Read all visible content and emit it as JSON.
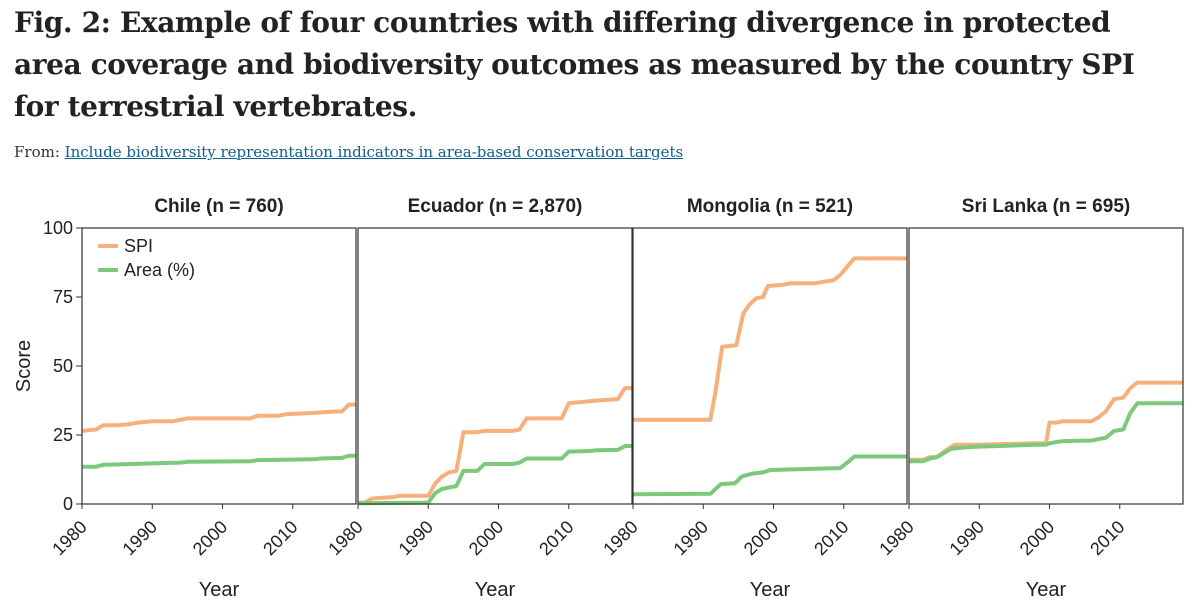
{
  "figure": {
    "title": "Fig. 2: Example of four countries with differing divergence in protected area coverage and biodiversity outcomes as measured by the country SPI for terrestrial vertebrates.",
    "from_label": "From:",
    "from_link": "Include biodiversity representation indicators in area-based conservation targets"
  },
  "colors": {
    "spi": "#f5b07c",
    "area": "#7dc97b",
    "frame": "#333333"
  },
  "chart_data": {
    "type": "line",
    "ylabel": "Score",
    "xlabel": "Year",
    "ylim": [
      0,
      100
    ],
    "xlim": [
      1980,
      2019
    ],
    "yticks": [
      0,
      25,
      50,
      75,
      100
    ],
    "xticks": [
      1980,
      1990,
      2000,
      2010
    ],
    "legend": {
      "position": "top-left",
      "entries": [
        "SPI",
        "Area (%)"
      ]
    },
    "panels": [
      {
        "title": "Chile (n = 760)",
        "series": [
          {
            "name": "SPI",
            "points": [
              [
                1980,
                26.5
              ],
              [
                1982,
                27
              ],
              [
                1983,
                28.5
              ],
              [
                1985,
                28.5
              ],
              [
                1987,
                29
              ],
              [
                1988,
                29.5
              ],
              [
                1990,
                30
              ],
              [
                1993,
                30
              ],
              [
                1995,
                31
              ],
              [
                2000,
                31
              ],
              [
                2004,
                31
              ],
              [
                2005,
                32
              ],
              [
                2008,
                32
              ],
              [
                2009,
                32.5
              ],
              [
                2013,
                33
              ],
              [
                2016,
                33.5
              ],
              [
                2017,
                33.5
              ],
              [
                2018,
                36
              ],
              [
                2019,
                36
              ]
            ]
          },
          {
            "name": "Area (%)",
            "points": [
              [
                1980,
                13.5
              ],
              [
                1982,
                13.5
              ],
              [
                1983,
                14.2
              ],
              [
                1987,
                14.5
              ],
              [
                1990,
                14.7
              ],
              [
                1994,
                15
              ],
              [
                1995,
                15.3
              ],
              [
                2004,
                15.5
              ],
              [
                2005,
                15.9
              ],
              [
                2013,
                16.2
              ],
              [
                2014,
                16.5
              ],
              [
                2017,
                16.7
              ],
              [
                2018,
                17.5
              ],
              [
                2019,
                17.5
              ]
            ]
          }
        ]
      },
      {
        "title": "Ecuador (n = 2,870)",
        "series": [
          {
            "name": "SPI",
            "points": [
              [
                1980,
                0.5
              ],
              [
                1981,
                0.5
              ],
              [
                1982,
                2
              ],
              [
                1985,
                2.5
              ],
              [
                1986,
                3
              ],
              [
                1990,
                3
              ],
              [
                1991,
                7.5
              ],
              [
                1992,
                10
              ],
              [
                1993,
                11.5
              ],
              [
                1994,
                12
              ],
              [
                1995,
                26
              ],
              [
                1997,
                26
              ],
              [
                1998,
                26.5
              ],
              [
                2002,
                26.5
              ],
              [
                2003,
                27
              ],
              [
                2004,
                31
              ],
              [
                2009,
                31
              ],
              [
                2010,
                36.5
              ],
              [
                2012,
                37
              ],
              [
                2014,
                37.5
              ],
              [
                2017,
                38
              ],
              [
                2018,
                42
              ],
              [
                2019,
                42
              ]
            ]
          },
          {
            "name": "Area (%)",
            "points": [
              [
                1980,
                0.3
              ],
              [
                1990,
                0.5
              ],
              [
                1991,
                4
              ],
              [
                1992,
                5.5
              ],
              [
                1993,
                6
              ],
              [
                1994,
                6.5
              ],
              [
                1995,
                12
              ],
              [
                1997,
                12
              ],
              [
                1998,
                14.5
              ],
              [
                2002,
                14.5
              ],
              [
                2003,
                15
              ],
              [
                2004,
                16.5
              ],
              [
                2009,
                16.5
              ],
              [
                2010,
                19
              ],
              [
                2013,
                19.2
              ],
              [
                2014,
                19.5
              ],
              [
                2017,
                19.6
              ],
              [
                2018,
                21
              ],
              [
                2019,
                21
              ]
            ]
          }
        ]
      },
      {
        "title": "Mongolia (n = 521)",
        "series": [
          {
            "name": "SPI",
            "points": [
              [
                1980,
                30.5
              ],
              [
                1991,
                30.5
              ],
              [
                1991.7,
                40
              ],
              [
                1992.7,
                57
              ],
              [
                1994.7,
                57.5
              ],
              [
                1995.7,
                69
              ],
              [
                1996.5,
                72
              ],
              [
                1997.5,
                74.5
              ],
              [
                1998.5,
                75
              ],
              [
                1999.2,
                79
              ],
              [
                2001.5,
                79.5
              ],
              [
                2002.5,
                80
              ],
              [
                2006,
                80
              ],
              [
                2007,
                80.5
              ],
              [
                2008.5,
                81
              ],
              [
                2009.5,
                83
              ],
              [
                2010.5,
                86
              ],
              [
                2011.5,
                89
              ],
              [
                2019,
                89
              ]
            ]
          },
          {
            "name": "Area (%)",
            "points": [
              [
                1980,
                3.5
              ],
              [
                1991,
                3.7
              ],
              [
                1992.5,
                7.2
              ],
              [
                1994.5,
                7.5
              ],
              [
                1995.5,
                10
              ],
              [
                1997,
                11
              ],
              [
                1998.5,
                11.5
              ],
              [
                1999.5,
                12.3
              ],
              [
                2002,
                12.5
              ],
              [
                2006,
                12.8
              ],
              [
                2009.5,
                13
              ],
              [
                2010.5,
                15
              ],
              [
                2011.5,
                17.2
              ],
              [
                2019,
                17.2
              ]
            ]
          }
        ]
      },
      {
        "title": "Sri Lanka (n = 695)",
        "series": [
          {
            "name": "SPI",
            "points": [
              [
                1980,
                16
              ],
              [
                1982,
                16
              ],
              [
                1983,
                17
              ],
              [
                1984,
                17
              ],
              [
                1985,
                19
              ],
              [
                1986.5,
                21.5
              ],
              [
                1990,
                21.5
              ],
              [
                1993,
                21.7
              ],
              [
                1998,
                22
              ],
              [
                1999.5,
                22
              ],
              [
                2000,
                29.5
              ],
              [
                2001,
                29.5
              ],
              [
                2002,
                30
              ],
              [
                2006,
                30
              ],
              [
                2007,
                31.5
              ],
              [
                2008,
                33.5
              ],
              [
                2009.2,
                38
              ],
              [
                2010.5,
                38.5
              ],
              [
                2011.5,
                42
              ],
              [
                2012.5,
                44
              ],
              [
                2019,
                44
              ]
            ]
          },
          {
            "name": "Area (%)",
            "points": [
              [
                1980,
                15.5
              ],
              [
                1982,
                15.5
              ],
              [
                1983,
                16.5
              ],
              [
                1984,
                17
              ],
              [
                1986,
                20
              ],
              [
                1988,
                20.5
              ],
              [
                1990,
                20.8
              ],
              [
                1993,
                21
              ],
              [
                1998,
                21.5
              ],
              [
                1999.5,
                21.5
              ],
              [
                2000,
                22
              ],
              [
                2001,
                22.5
              ],
              [
                2002,
                22.8
              ],
              [
                2006,
                23
              ],
              [
                2007,
                23.5
              ],
              [
                2008,
                24
              ],
              [
                2009.2,
                26.5
              ],
              [
                2010.5,
                27
              ],
              [
                2011.5,
                33
              ],
              [
                2012.5,
                36.5
              ],
              [
                2019,
                36.5
              ]
            ]
          }
        ]
      }
    ]
  }
}
